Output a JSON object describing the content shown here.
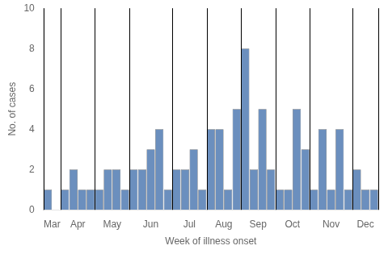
{
  "chart_data": {
    "type": "bar",
    "xlabel": "Week of illness onset",
    "ylabel": "No. of cases",
    "categories": [
      "Mar",
      null,
      "Apr",
      null,
      null,
      null,
      "May",
      null,
      null,
      null,
      "Jun",
      null,
      null,
      null,
      null,
      "Jul",
      null,
      null,
      null,
      "Aug",
      null,
      null,
      null,
      "Sep",
      null,
      null,
      null,
      "Oct",
      null,
      null,
      null,
      "Nov",
      null,
      null,
      null,
      null,
      "Dec",
      null,
      null
    ],
    "values": [
      1,
      0,
      1,
      2,
      1,
      1,
      1,
      2,
      2,
      1,
      2,
      2,
      3,
      4,
      1,
      2,
      2,
      3,
      1,
      4,
      4,
      1,
      5,
      8,
      2,
      5,
      2,
      1,
      1,
      5,
      3,
      1,
      4,
      1,
      4,
      1,
      2,
      1,
      1
    ],
    "color": "#6b8fbe",
    "ylim": [
      0,
      10
    ],
    "yticks": [
      0,
      2,
      4,
      6,
      8,
      10
    ],
    "grid": false
  }
}
